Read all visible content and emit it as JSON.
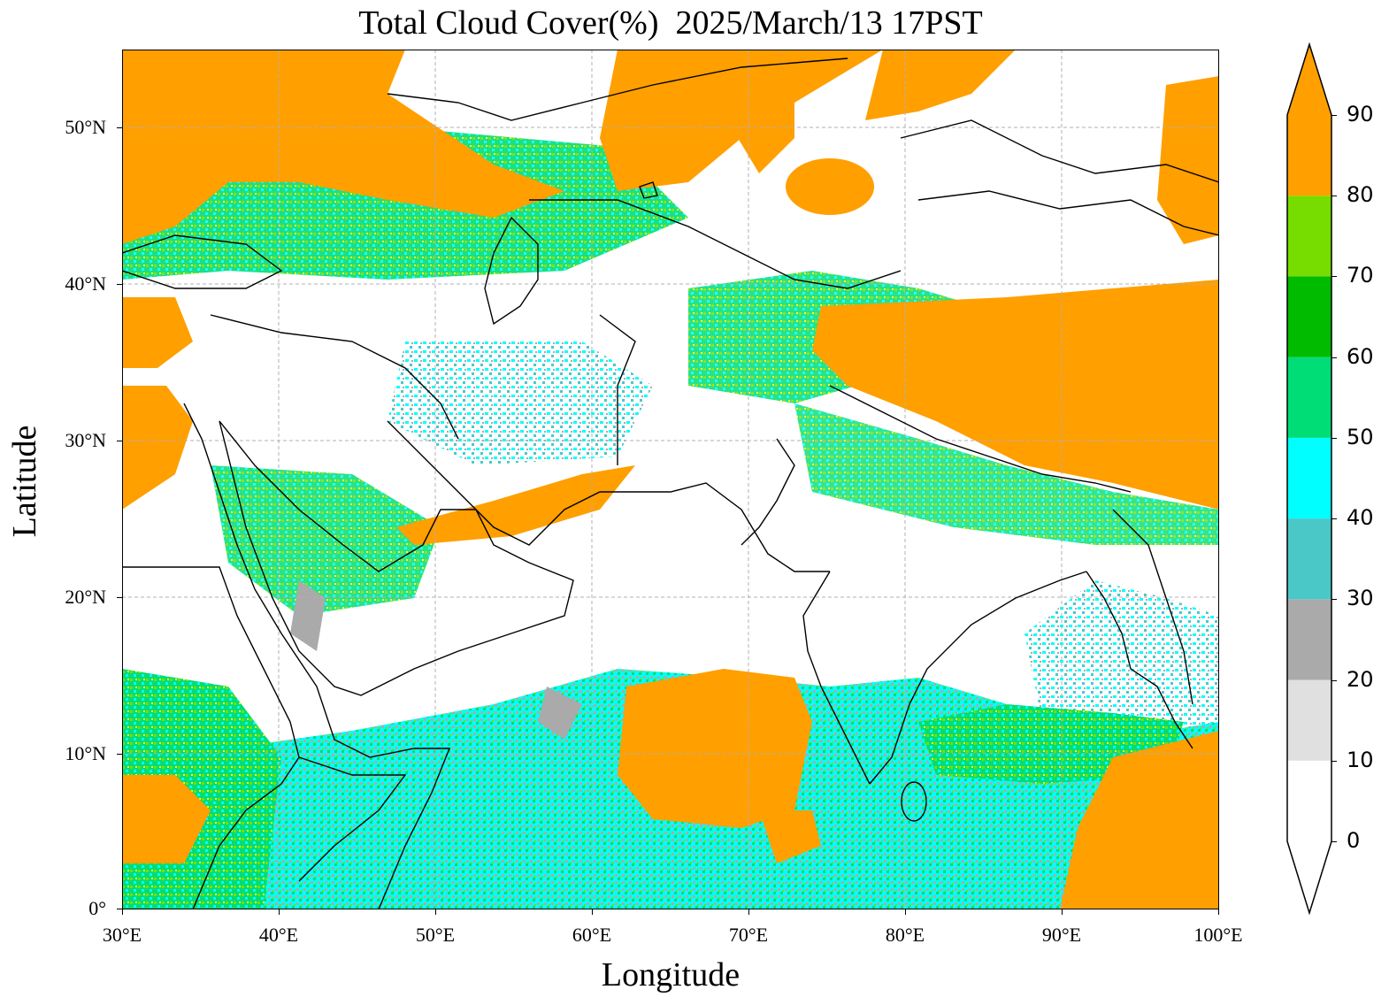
{
  "title": "Total Cloud Cover(%)  2025/March/13 17PST",
  "xlabel": "Longitude",
  "ylabel": "Latitude",
  "x_ticks": [
    "30°E",
    "40°E",
    "50°E",
    "60°E",
    "70°E",
    "80°E",
    "90°E",
    "100°E"
  ],
  "y_ticks": [
    "50°N",
    "40°N",
    "30°N",
    "20°N",
    "10°N",
    "0°"
  ],
  "colorbar": {
    "ticks": [
      "0",
      "10",
      "20",
      "30",
      "40",
      "50",
      "60",
      "70",
      "80",
      "90"
    ],
    "colors": [
      "#ffffff",
      "#e0e0e0",
      "#aaaaaa",
      "#4ac8c8",
      "#00ffff",
      "#00dd77",
      "#00bb00",
      "#77dd00",
      "#ffff00",
      "#ff9f00"
    ]
  },
  "colors": {
    "overcast": "#ff9f00",
    "clear": "#ffffff",
    "borders": "#000000",
    "grid": "#b0b0b0"
  }
}
